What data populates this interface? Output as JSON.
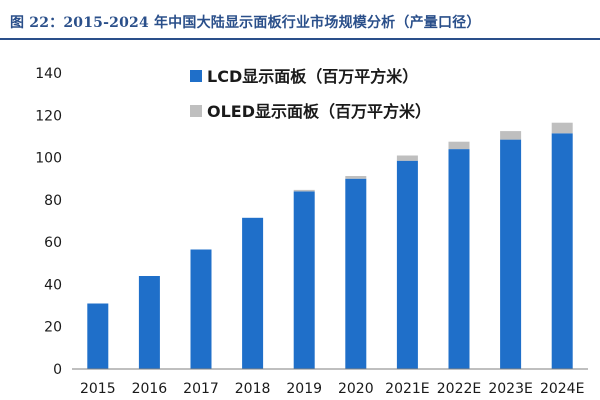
{
  "header": {
    "title": "图 22：2015-2024 年中国大陆显示面板行业市场规模分析（产量口径）"
  },
  "colors": {
    "title": "#2a4f8a",
    "lcd": "#1f6fc9",
    "oled": "#bfbfbf",
    "axis": "#7f7f7f"
  },
  "chart_data": {
    "type": "bar",
    "stacked": true,
    "categories": [
      "2015",
      "2016",
      "2017",
      "2018",
      "2019",
      "2020",
      "2021E",
      "2022E",
      "2023E",
      "2024E"
    ],
    "series": [
      {
        "name": "LCD显示面板（百万平方米）",
        "values": [
          31,
          44,
          56.5,
          71.5,
          84,
          90,
          98.5,
          104,
          108.5,
          111.5
        ]
      },
      {
        "name": "OLED显示面板（百万平方米）",
        "values": [
          0,
          0,
          0,
          0,
          0.7,
          1.3,
          2.5,
          3.5,
          4.0,
          5.0
        ]
      }
    ],
    "title": "",
    "xlabel": "",
    "ylabel": "",
    "ylim": [
      0,
      140
    ],
    "yticks": [
      "0",
      "20",
      "40",
      "60",
      "80",
      "100",
      "120",
      "140"
    ],
    "grid": false,
    "legend_position": "top-left"
  }
}
